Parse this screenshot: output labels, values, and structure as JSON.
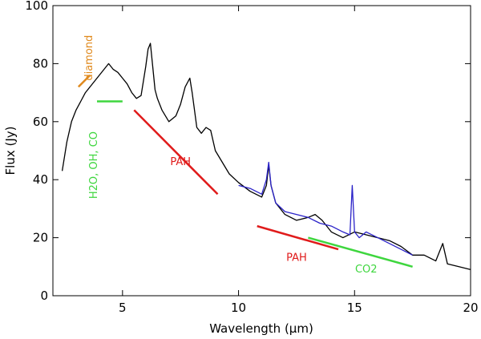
{
  "chart_data": {
    "type": "line",
    "title": "",
    "xlabel": "Wavelength (μm)",
    "ylabel": "Flux (Jy)",
    "xlim": [
      2,
      20
    ],
    "ylim": [
      0,
      100
    ],
    "xticks": [
      5,
      10,
      15,
      20
    ],
    "yticks": [
      0,
      20,
      40,
      60,
      80,
      100
    ],
    "grid": false,
    "colors": {
      "black_spectrum": "#000000",
      "blue_spectrum": "#2a22c8",
      "diamond": "#e08a1e",
      "green": "#3ed63e",
      "red": "#e01b1b"
    },
    "series": [
      {
        "name": "black spectrum",
        "color": "#000000",
        "x": [
          2.4,
          2.6,
          2.8,
          3.0,
          3.2,
          3.4,
          3.6,
          3.8,
          4.0,
          4.2,
          4.4,
          4.6,
          4.8,
          5.0,
          5.2,
          5.4,
          5.6,
          5.8,
          6.0,
          6.1,
          6.2,
          6.3,
          6.4,
          6.5,
          6.7,
          7.0,
          7.3,
          7.5,
          7.7,
          7.9,
          8.0,
          8.2,
          8.4,
          8.6,
          8.8,
          9.0,
          9.3,
          9.6,
          10.0,
          10.5,
          11.0,
          11.2,
          11.3,
          11.4,
          11.6,
          12.0,
          12.5,
          13.0,
          13.3,
          13.6,
          14.0,
          14.5,
          15.0,
          15.5,
          16.0,
          16.5,
          17.0,
          17.5,
          18.0,
          18.5,
          18.8,
          19.0,
          19.5,
          20.0
        ],
        "y": [
          43,
          53,
          60,
          64,
          67,
          70,
          72,
          74,
          76,
          78,
          80,
          78,
          77,
          75,
          73,
          70,
          68,
          69,
          79,
          85,
          87,
          79,
          71,
          68,
          64,
          60,
          62,
          66,
          72,
          75,
          70,
          58,
          56,
          58,
          57,
          50,
          46,
          42,
          39,
          36,
          34,
          38,
          45,
          38,
          32,
          28,
          26,
          27,
          28,
          26,
          22,
          20,
          22,
          21,
          20,
          19,
          17,
          14,
          14,
          12,
          18,
          11,
          10,
          9
        ]
      },
      {
        "name": "blue spectrum",
        "color": "#2a22c8",
        "x": [
          10.0,
          10.5,
          11.0,
          11.2,
          11.3,
          11.4,
          11.6,
          12.0,
          12.5,
          13.0,
          13.5,
          14.0,
          14.5,
          14.8,
          14.9,
          15.0,
          15.2,
          15.5,
          16.0,
          16.5,
          17.0,
          17.5
        ],
        "y": [
          38,
          37,
          35,
          40,
          46,
          38,
          32,
          29,
          28,
          27,
          25,
          24,
          22,
          21,
          38,
          22,
          20,
          22,
          20,
          18,
          16,
          14
        ]
      }
    ],
    "annotations": [
      {
        "text": "diamond",
        "color": "#e08a1e",
        "line": {
          "x": [
            3.1,
            3.6
          ],
          "y": [
            72,
            76
          ]
        },
        "label_pos": {
          "x": 3.7,
          "y": 82
        },
        "rotation": -90
      },
      {
        "text": "H2O, OH, CO",
        "color": "#3ed63e",
        "line": {
          "x": [
            3.9,
            5.0
          ],
          "y": [
            67,
            67
          ]
        },
        "label_pos": {
          "x": 3.9,
          "y": 45
        },
        "rotation": -90
      },
      {
        "text": "PAH",
        "color": "#e01b1b",
        "line": {
          "x": [
            5.5,
            9.1
          ],
          "y": [
            64,
            35
          ]
        },
        "label_pos": {
          "x": 7.5,
          "y": 45
        },
        "rotation": 0
      },
      {
        "text": "PAH",
        "color": "#e01b1b",
        "line": {
          "x": [
            10.8,
            14.3
          ],
          "y": [
            24,
            16
          ]
        },
        "label_pos": {
          "x": 12.5,
          "y": 12
        },
        "rotation": 0
      },
      {
        "text": "CO2",
        "color": "#3ed63e",
        "line": {
          "x": [
            13.0,
            17.5
          ],
          "y": [
            20,
            10
          ]
        },
        "label_pos": {
          "x": 15.5,
          "y": 8
        },
        "rotation": 0
      }
    ]
  }
}
